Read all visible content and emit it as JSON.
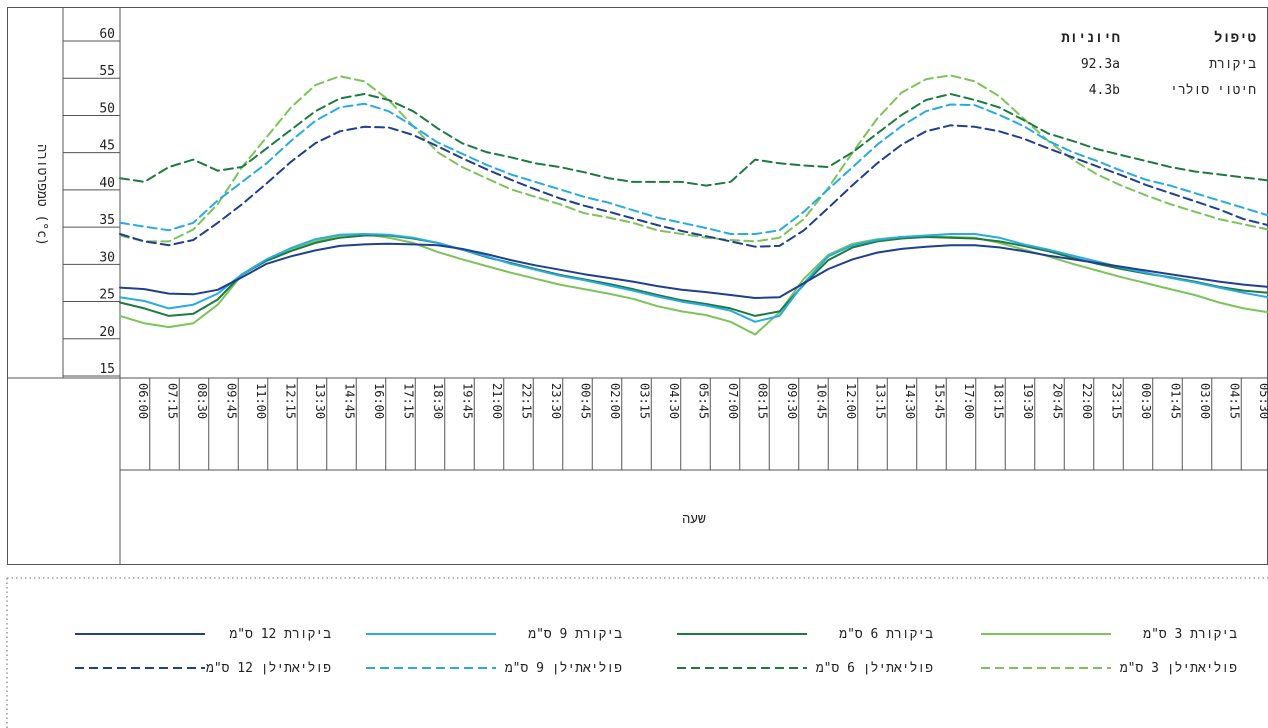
{
  "chart_data": {
    "type": "line",
    "xlabel": "שעה",
    "ylabel": "טמפרטורה (°c)",
    "ylim": [
      15,
      60
    ],
    "y_ticks": [
      15,
      20,
      25,
      30,
      35,
      40,
      45,
      50,
      55,
      60
    ],
    "x_tick_labels": [
      "06:00",
      "07:15",
      "08:30",
      "09:45",
      "11:00",
      "12:15",
      "13:30",
      "14:45",
      "16:00",
      "17:15",
      "18:30",
      "19:45",
      "21:00",
      "22:15",
      "23:30",
      "00:45",
      "02:00",
      "03:15",
      "04:30",
      "05:45",
      "07:00",
      "08:15",
      "09:30",
      "10:45",
      "12:00",
      "13:15",
      "14:30",
      "15:45",
      "17:00",
      "18:15",
      "19:30",
      "20:45",
      "22:00",
      "23:15",
      "00:30",
      "01:45",
      "03:00",
      "04:15",
      "05:30"
    ],
    "grid": "x-ticks only",
    "legend_position": "bottom",
    "series": [
      {
        "name": "ביקורת 3 ס\"מ",
        "color": "#7cc35a",
        "dash": "solid",
        "values": [
          22,
          21,
          20.5,
          21,
          23.5,
          27.5,
          29.5,
          31,
          32,
          32.8,
          33,
          32.5,
          31.8,
          30.6,
          29.6,
          28.7,
          27.8,
          27,
          26.2,
          25.6,
          25,
          24.3,
          23.3,
          22.6,
          22.1,
          21.2,
          19.5,
          22.5,
          27,
          30.2,
          31.7,
          32.3,
          32.6,
          32.7,
          32.6,
          32.5,
          31.8,
          30.9,
          30,
          29,
          28.1,
          27.2,
          26.4,
          25.6,
          24.8,
          23.8,
          23,
          22.5
        ]
      },
      {
        "name": "ביקורת 6 ס\"מ",
        "color": "#1e7a3f",
        "dash": "solid",
        "values": [
          23.8,
          23,
          22,
          22.3,
          24.2,
          27.6,
          29.4,
          30.7,
          31.8,
          32.5,
          32.8,
          32.8,
          32.4,
          31.8,
          30.9,
          29.9,
          29.1,
          28.3,
          27.5,
          26.9,
          26.3,
          25.6,
          24.8,
          24.1,
          23.6,
          23,
          22,
          22.6,
          26.2,
          29.5,
          31.2,
          32,
          32.4,
          32.6,
          32.5,
          32.4,
          32,
          31.4,
          30.7,
          29.8,
          29,
          28.3,
          27.7,
          27.2,
          26.6,
          25.9,
          25.4,
          25.1
        ]
      },
      {
        "name": "ביקורת 9 ס\"מ",
        "color": "#29abe2",
        "dash": "solid",
        "values": [
          24.5,
          24,
          23,
          23.5,
          25,
          27.6,
          29.6,
          31.1,
          32.3,
          32.9,
          33,
          32.9,
          32.5,
          31.8,
          30.9,
          30,
          29,
          28.2,
          27.4,
          26.8,
          26.1,
          25.4,
          24.6,
          23.9,
          23.4,
          22.7,
          21.2,
          22,
          26.4,
          30,
          31.5,
          32.2,
          32.6,
          32.8,
          33,
          33,
          32.5,
          31.6,
          30.9,
          30.1,
          29.3,
          28.5,
          27.8,
          27.1,
          26.5,
          25.8,
          25.1,
          24.5
        ]
      },
      {
        "name": "ביקורת 12 ס\"מ",
        "color": "#1f3f8f",
        "dash": "solid",
        "values": [
          25.8,
          25.6,
          25,
          24.9,
          25.5,
          27.2,
          29,
          30,
          30.8,
          31.4,
          31.6,
          31.7,
          31.6,
          31.5,
          31,
          30.3,
          29.5,
          28.8,
          28.2,
          27.6,
          27.1,
          26.6,
          26,
          25.5,
          25.2,
          24.8,
          24.4,
          24.5,
          26.4,
          28.3,
          29.6,
          30.5,
          31,
          31.3,
          31.5,
          31.5,
          31.2,
          30.7,
          30.1,
          29.6,
          29.1,
          28.6,
          28.1,
          27.6,
          27.1,
          26.6,
          26.2,
          25.9
        ]
      },
      {
        "name": "פוליאתילן 3 ס\"מ",
        "color": "#7cc35a",
        "dash": "dashed",
        "values": [
          32.8,
          32,
          32,
          33.6,
          37,
          42,
          46,
          50,
          53,
          54.2,
          53.5,
          51,
          47.5,
          44,
          42,
          40.5,
          39,
          38,
          37,
          35.8,
          35.2,
          34.5,
          33.5,
          33,
          32.5,
          32.2,
          32,
          32.5,
          35,
          39.2,
          44,
          48.5,
          52,
          53.8,
          54.3,
          53.5,
          51.5,
          48.5,
          45.5,
          43,
          41,
          39.5,
          38.2,
          37,
          36,
          35,
          34.3,
          33.6
        ]
      },
      {
        "name": "פוליאתילן 6 ס\"מ",
        "color": "#1e7a3f",
        "dash": "dashed",
        "values": [
          40.5,
          40,
          42,
          43,
          41.5,
          42,
          44.5,
          47,
          49.5,
          51.2,
          51.8,
          51,
          49.5,
          47.2,
          45.2,
          44,
          43.3,
          42.5,
          42,
          41.3,
          40.5,
          40,
          40,
          40,
          39.5,
          40,
          43,
          42.5,
          42.2,
          42,
          44,
          46.5,
          49,
          51,
          51.8,
          51,
          50,
          48.3,
          46.5,
          45.5,
          44.4,
          43.6,
          42.8,
          42,
          41.4,
          41,
          40.6,
          40.2
        ]
      },
      {
        "name": "פוליאתילן 9 ס\"מ",
        "color": "#29abe2",
        "dash": "dashed",
        "values": [
          34.5,
          34,
          33.5,
          34.5,
          37.5,
          40,
          42.5,
          45.5,
          48.2,
          50,
          50.5,
          49.5,
          47.5,
          45.3,
          43.8,
          42.3,
          41,
          40,
          39,
          38,
          37.2,
          36.2,
          35.2,
          34.5,
          33.8,
          33,
          33,
          33.5,
          36,
          39,
          42,
          45,
          47.5,
          49.5,
          50.4,
          50.3,
          49,
          47.5,
          45.5,
          44,
          42.8,
          41.5,
          40.3,
          39.5,
          38.5,
          37.5,
          36.5,
          35.5
        ]
      },
      {
        "name": "פוליאתילן 12 ס\"מ",
        "color": "#1f3f8f",
        "dash": "dashed",
        "values": [
          33,
          32,
          31.5,
          32.2,
          34.5,
          37,
          39.8,
          42.7,
          45.2,
          46.8,
          47.4,
          47.3,
          46.3,
          44.8,
          43.2,
          41.7,
          40.3,
          39,
          37.8,
          36.8,
          36,
          35.1,
          34.2,
          33.4,
          32.7,
          32,
          31.3,
          31.4,
          33.5,
          36.5,
          39.6,
          42.5,
          45,
          46.8,
          47.6,
          47.4,
          46.8,
          45.8,
          44.5,
          43.3,
          42.1,
          40.9,
          39.6,
          38.5,
          37.4,
          36.3,
          35,
          34.2
        ]
      }
    ]
  },
  "table": {
    "headers": [
      "טיפול",
      "חיוניות"
    ],
    "rows": [
      [
        "ביקורת",
        "92.3a"
      ],
      [
        "חיטוי סולרי",
        "4.3b"
      ]
    ]
  }
}
